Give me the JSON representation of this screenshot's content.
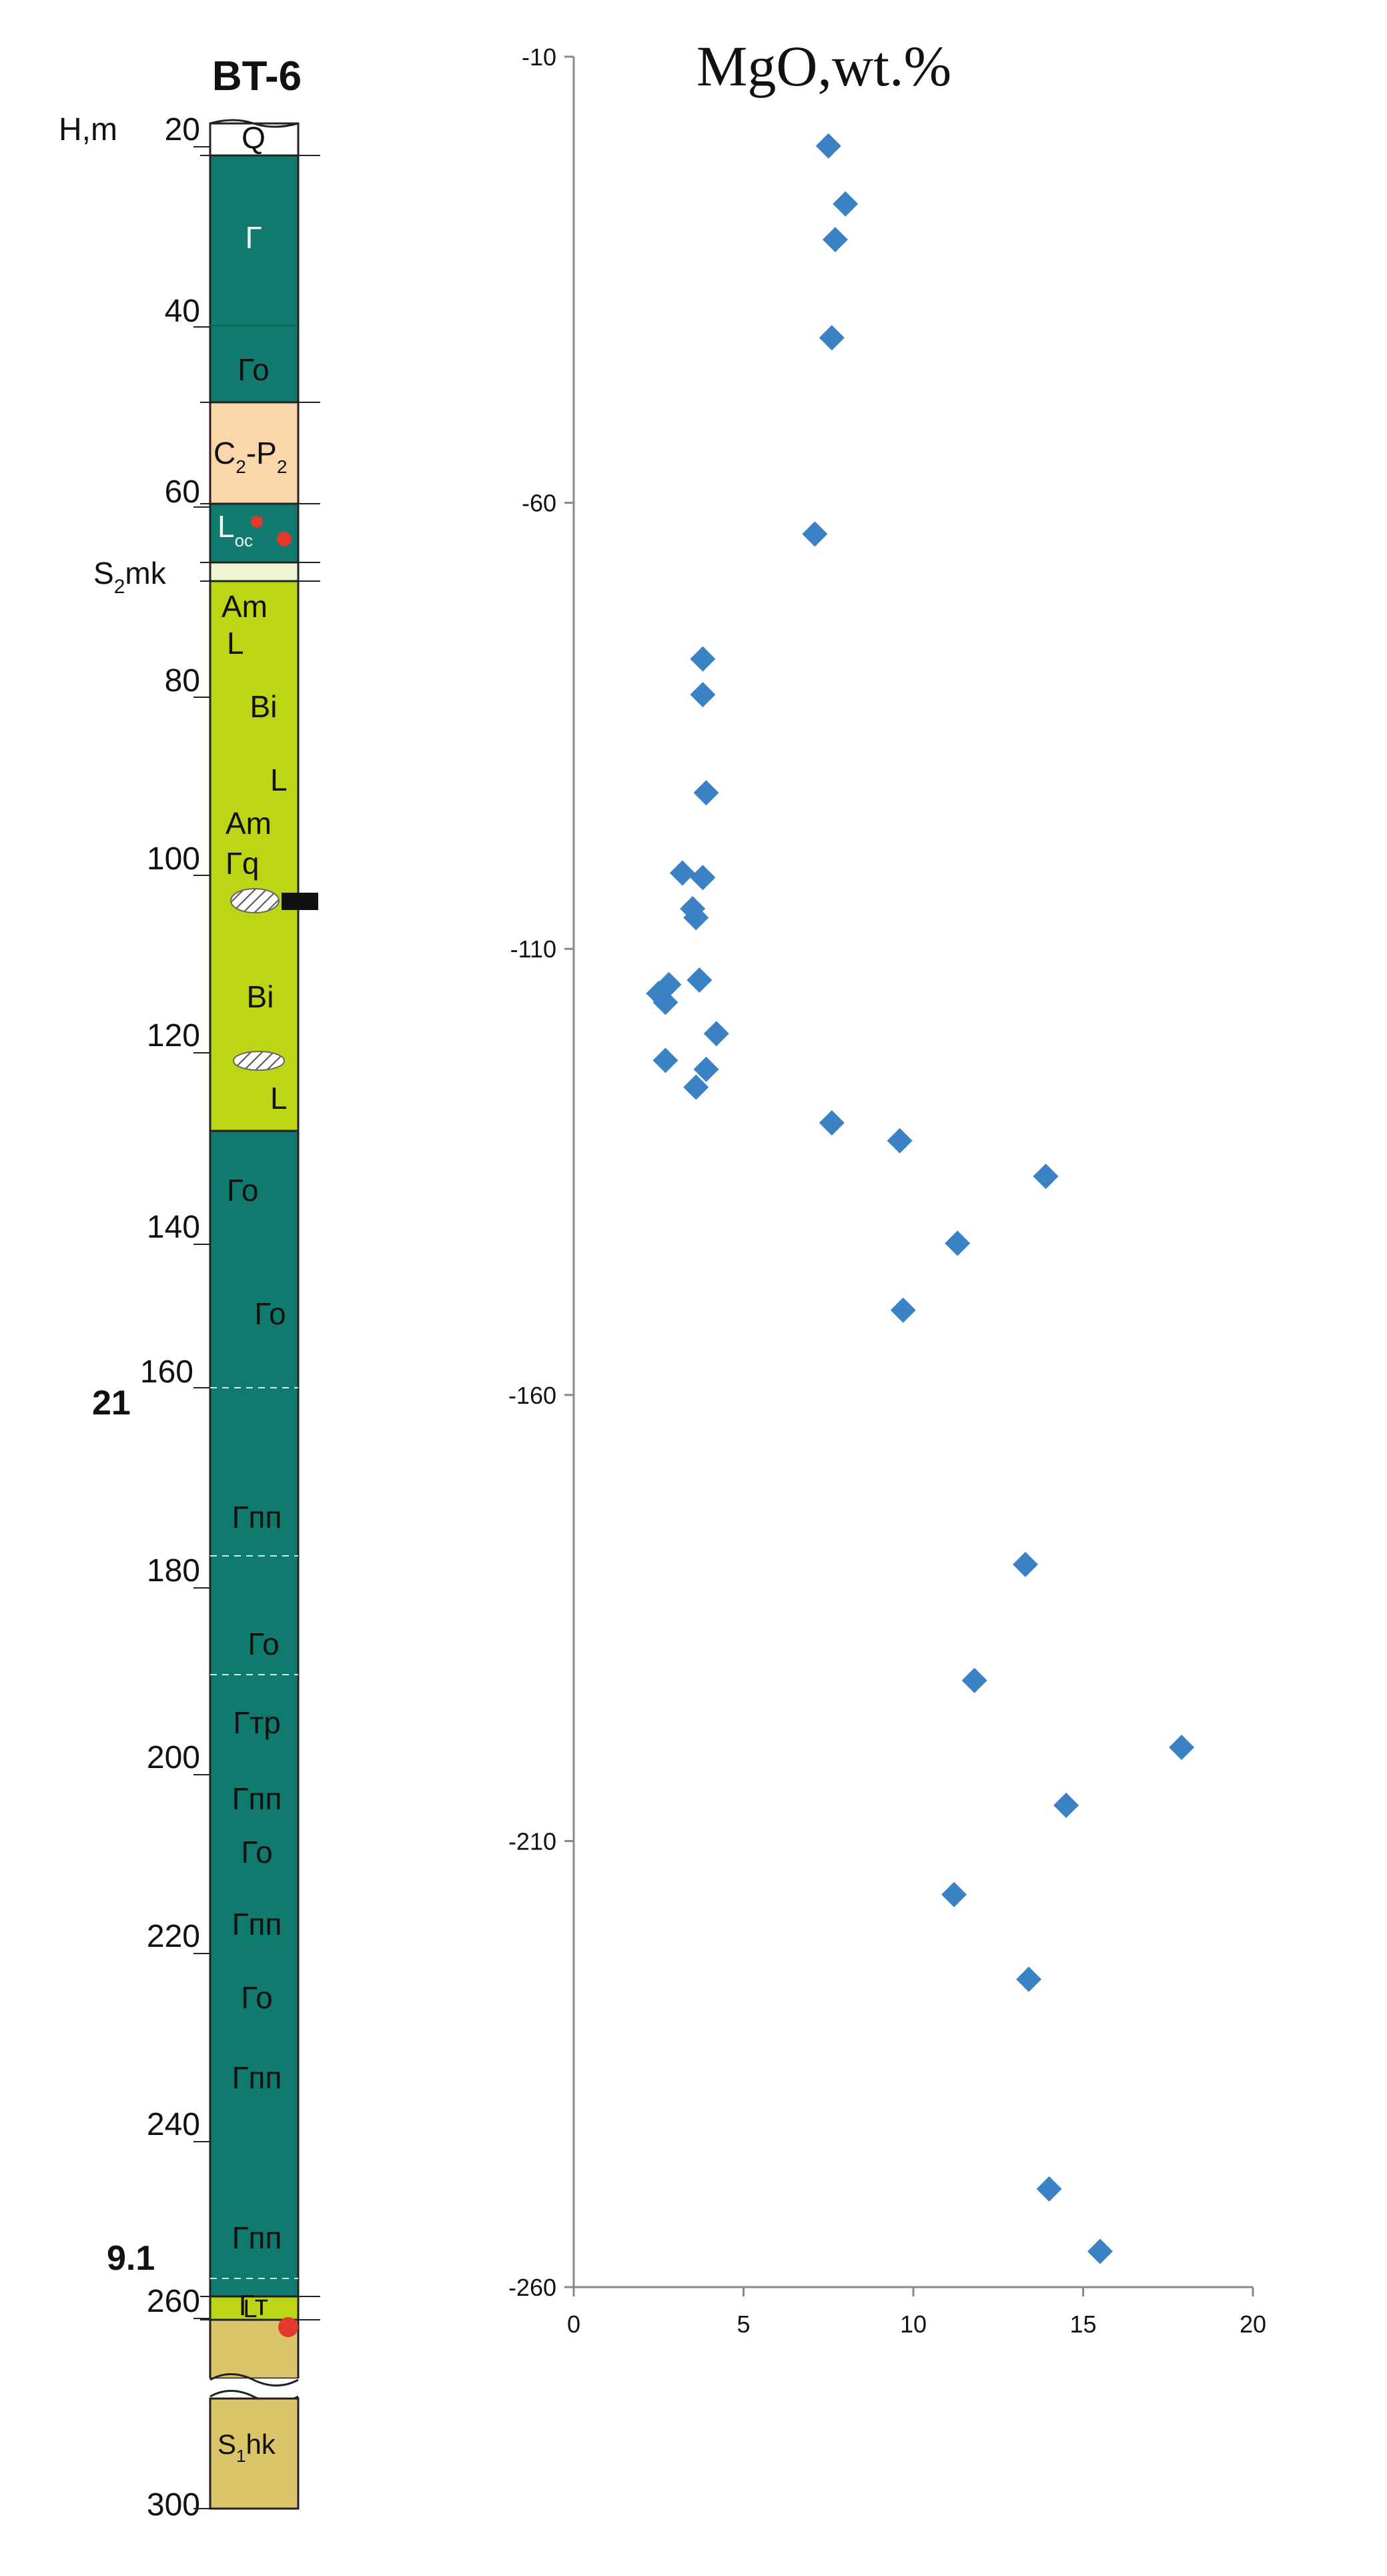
{
  "column": {
    "title": "BT-6",
    "depth_label": "H,m",
    "depth_ticks": [
      "20",
      "40",
      "60",
      "80",
      "100",
      "120",
      "140",
      "160",
      "180",
      "200",
      "220",
      "240",
      "260",
      "300"
    ],
    "side_marks": [
      {
        "text": "21",
        "depth": 160
      },
      {
        "text": "9.1",
        "depth": 257
      }
    ],
    "units": [
      {
        "label": "Q",
        "top": 20,
        "bottom": 22,
        "color": "#ffffff"
      },
      {
        "label": "Г",
        "top": 22,
        "bottom": 41,
        "color": "#117a6e"
      },
      {
        "label": "Го",
        "top": 41,
        "bottom": 50,
        "color": "#117a6e"
      },
      {
        "label": "C",
        "sub1": "2",
        "mid": "-P",
        "sub2": "2",
        "top": 50,
        "bottom": 60,
        "color": "#fbd6aa"
      },
      {
        "label": "L",
        "sub1": "ос",
        "top": 60,
        "bottom": 66,
        "color": "#117a6e"
      },
      {
        "label": "S",
        "sub1": "2",
        "suffix": "mk",
        "top": 66,
        "bottom": 68,
        "color": "#e8f2c0"
      },
      {
        "label": "Am L Bi L Am Гq",
        "top": 68,
        "bottom": 128,
        "color": "#bcd615"
      },
      {
        "label": "Го Го",
        "top": 128,
        "bottom": 160,
        "color": "#117a6e"
      },
      {
        "label": "Гпп",
        "top": 160,
        "bottom": 177,
        "color": "#117a6e"
      },
      {
        "label": "Го",
        "top": 177,
        "bottom": 190,
        "color": "#117a6e"
      },
      {
        "label": "Гтр Гпп Го Гпп Го Гпп Гпп",
        "top": 190,
        "bottom": 257,
        "color": "#117a6e"
      },
      {
        "label": "Гт",
        "top": 257,
        "bottom": 264,
        "color": "#117a6e"
      },
      {
        "label": "L",
        "top": 264,
        "bottom": 267,
        "color": "#bcd615"
      },
      {
        "label": "S",
        "sub1": "1",
        "suffix": "hk",
        "top": 267,
        "bottom": 300,
        "color": "#dcc46a"
      }
    ],
    "texts": {
      "q": "Q",
      "g1": "Г",
      "go1": "Го",
      "c": "C",
      "c_sub": "2",
      "p": "-P",
      "p_sub": "2",
      "l": "L",
      "l_sub": "ос",
      "s2": "S",
      "s2_sub": "2",
      "s2_suf": "mk",
      "am1": "Am",
      "l1": "L",
      "bi1": "Bi",
      "l2": "L",
      "am2": "Am",
      "gq": "Гq",
      "bi2": "Bi",
      "l3": "L",
      "go2": "Го",
      "go3": "Го",
      "gpp1": "Гпп",
      "go4": "Го",
      "gtr": "Гтр",
      "gpp2": "Гпп",
      "go5": "Го",
      "gpp3": "Гпп",
      "go6": "Го",
      "gpp4": "Гпп",
      "gpp5": "Гпп",
      "gt": "Гт",
      "l4": "L",
      "s1": "S",
      "s1_sub": "1",
      "s1_suf": "hk"
    }
  },
  "chart_data": {
    "type": "scatter",
    "title": "MgO,wt.%",
    "xlabel": "",
    "ylabel": "",
    "xlim": [
      0,
      20
    ],
    "ylim": [
      -260,
      -10
    ],
    "x_ticks": [
      0,
      5,
      10,
      15,
      20
    ],
    "y_ticks": [
      -10,
      -60,
      -110,
      -160,
      -210,
      -260
    ],
    "marker_color": "#3b82c4",
    "grid": false,
    "points": [
      {
        "x": 7.5,
        "y": -20
      },
      {
        "x": 8.0,
        "y": -26.5
      },
      {
        "x": 7.7,
        "y": -30.5
      },
      {
        "x": 7.6,
        "y": -41.5
      },
      {
        "x": 7.1,
        "y": -63.5
      },
      {
        "x": 3.8,
        "y": -77.5
      },
      {
        "x": 3.8,
        "y": -81.5
      },
      {
        "x": 3.9,
        "y": -92.5
      },
      {
        "x": 3.2,
        "y": -101.5
      },
      {
        "x": 3.8,
        "y": -102
      },
      {
        "x": 3.5,
        "y": -105.5
      },
      {
        "x": 3.6,
        "y": -106.5
      },
      {
        "x": 3.7,
        "y": -113.5
      },
      {
        "x": 2.8,
        "y": -114
      },
      {
        "x": 2.5,
        "y": -115
      },
      {
        "x": 2.7,
        "y": -116
      },
      {
        "x": 4.2,
        "y": -119.5
      },
      {
        "x": 2.7,
        "y": -122.5
      },
      {
        "x": 3.9,
        "y": -123.5
      },
      {
        "x": 3.6,
        "y": -125.5
      },
      {
        "x": 7.6,
        "y": -129.5
      },
      {
        "x": 9.6,
        "y": -131.5
      },
      {
        "x": 13.9,
        "y": -135.5
      },
      {
        "x": 11.3,
        "y": -143
      },
      {
        "x": 9.7,
        "y": -150.5
      },
      {
        "x": 13.3,
        "y": -179
      },
      {
        "x": 11.8,
        "y": -192
      },
      {
        "x": 17.9,
        "y": -199.5
      },
      {
        "x": 14.5,
        "y": -206
      },
      {
        "x": 11.2,
        "y": -216
      },
      {
        "x": 13.4,
        "y": -225.5
      },
      {
        "x": 14.0,
        "y": -249
      },
      {
        "x": 15.5,
        "y": -256
      }
    ]
  }
}
